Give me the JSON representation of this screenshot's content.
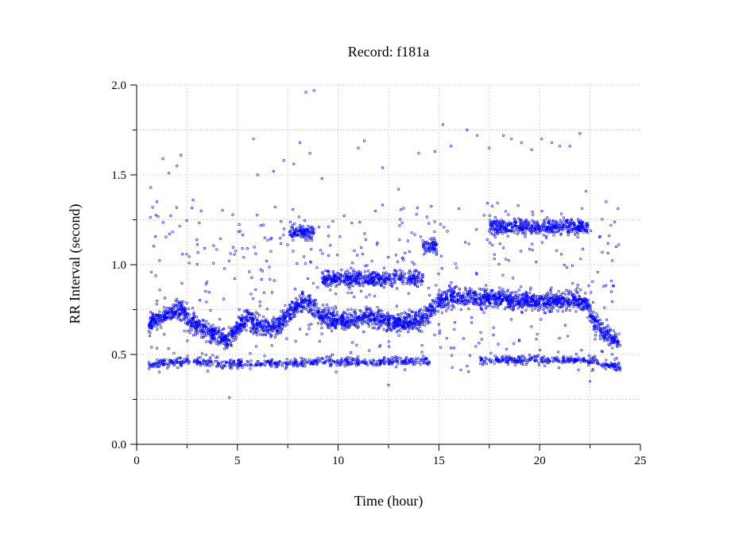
{
  "chart_data": {
    "type": "scatter",
    "title": "Record:  f181a",
    "xlabel": "Time (hour)",
    "ylabel": "RR Interval (second)",
    "xlim": [
      0,
      25
    ],
    "ylim": [
      0,
      2.0
    ],
    "x_ticks": [
      0,
      5,
      10,
      15,
      20,
      25
    ],
    "x_tick_labels": [
      "0",
      "5",
      "10",
      "15",
      "20",
      "25"
    ],
    "y_ticks": [
      0,
      0.5,
      1.0,
      1.5,
      2.0
    ],
    "y_tick_labels": [
      "0.0",
      "0.5",
      "1.0",
      "1.5",
      "2.0"
    ],
    "grid": true,
    "legend": "none",
    "marker_color": "#0000ff",
    "series": [
      {
        "name": "",
        "main_band": [
          [
            0.6,
            0.67
          ],
          [
            1.0,
            0.7
          ],
          [
            1.5,
            0.72
          ],
          [
            2.0,
            0.74
          ],
          [
            2.3,
            0.75
          ],
          [
            2.6,
            0.68
          ],
          [
            3.0,
            0.67
          ],
          [
            3.5,
            0.62
          ],
          [
            4.0,
            0.6
          ],
          [
            4.5,
            0.58
          ],
          [
            5.0,
            0.65
          ],
          [
            5.5,
            0.7
          ],
          [
            6.0,
            0.66
          ],
          [
            6.5,
            0.65
          ],
          [
            7.0,
            0.66
          ],
          [
            7.5,
            0.72
          ],
          [
            8.0,
            0.78
          ],
          [
            8.5,
            0.8
          ],
          [
            9.0,
            0.72
          ],
          [
            9.5,
            0.7
          ],
          [
            10.0,
            0.69
          ],
          [
            10.5,
            0.69
          ],
          [
            11.0,
            0.7
          ],
          [
            11.5,
            0.71
          ],
          [
            12.0,
            0.7
          ],
          [
            12.5,
            0.68
          ],
          [
            13.0,
            0.67
          ],
          [
            13.5,
            0.68
          ],
          [
            14.0,
            0.7
          ],
          [
            14.5,
            0.73
          ],
          [
            15.0,
            0.8
          ],
          [
            15.5,
            0.82
          ],
          [
            16.0,
            0.82
          ],
          [
            16.5,
            0.82
          ],
          [
            17.0,
            0.8
          ],
          [
            17.5,
            0.82
          ],
          [
            18.0,
            0.81
          ],
          [
            18.5,
            0.8
          ],
          [
            19.0,
            0.79
          ],
          [
            19.5,
            0.8
          ],
          [
            20.0,
            0.79
          ],
          [
            20.5,
            0.8
          ],
          [
            21.0,
            0.8
          ],
          [
            21.5,
            0.8
          ],
          [
            22.0,
            0.8
          ],
          [
            22.3,
            0.8
          ],
          [
            22.6,
            0.7
          ],
          [
            23.0,
            0.65
          ],
          [
            23.5,
            0.6
          ],
          [
            24.0,
            0.57
          ]
        ],
        "lower_band": [
          [
            0.6,
            0.44
          ],
          [
            1.0,
            0.45
          ],
          [
            2.0,
            0.46
          ],
          [
            3.0,
            0.46
          ],
          [
            4.0,
            0.45
          ],
          [
            5.0,
            0.45
          ],
          [
            6.0,
            0.45
          ],
          [
            7.0,
            0.45
          ],
          [
            8.0,
            0.45
          ],
          [
            9.0,
            0.46
          ],
          [
            10.0,
            0.46
          ],
          [
            11.0,
            0.46
          ],
          [
            12.0,
            0.46
          ],
          [
            13.0,
            0.46
          ],
          [
            14.0,
            0.46
          ],
          [
            14.6,
            0.46
          ],
          [
            17.0,
            0.47
          ],
          [
            18.0,
            0.47
          ],
          [
            19.0,
            0.47
          ],
          [
            20.0,
            0.47
          ],
          [
            21.0,
            0.47
          ],
          [
            22.0,
            0.47
          ],
          [
            23.0,
            0.45
          ],
          [
            24.0,
            0.43
          ]
        ],
        "upper_clusters": [
          {
            "x_range": [
              7.6,
              8.8
            ],
            "y_center": 1.18
          },
          {
            "x_range": [
              17.5,
              22.4
            ],
            "y_center": 1.21
          },
          {
            "x_range": [
              14.2,
              14.9
            ],
            "y_center": 1.1
          },
          {
            "x_range": [
              9.2,
              14.2
            ],
            "y_center": 0.92
          }
        ],
        "outliers": [
          [
            0.7,
            1.43
          ],
          [
            1.0,
            1.35
          ],
          [
            1.3,
            1.59
          ],
          [
            1.6,
            1.51
          ],
          [
            2.0,
            1.55
          ],
          [
            2.2,
            1.61
          ],
          [
            2.8,
            1.36
          ],
          [
            3.2,
            1.3
          ],
          [
            5.8,
            1.7
          ],
          [
            6.0,
            1.5
          ],
          [
            6.8,
            1.52
          ],
          [
            7.3,
            1.58
          ],
          [
            7.8,
            1.56
          ],
          [
            8.1,
            1.68
          ],
          [
            8.4,
            1.96
          ],
          [
            8.8,
            1.97
          ],
          [
            8.6,
            1.62
          ],
          [
            9.2,
            1.48
          ],
          [
            11.0,
            1.65
          ],
          [
            11.3,
            1.69
          ],
          [
            12.2,
            1.54
          ],
          [
            13.0,
            1.42
          ],
          [
            14.0,
            1.62
          ],
          [
            14.8,
            1.63
          ],
          [
            15.2,
            1.78
          ],
          [
            15.6,
            1.66
          ],
          [
            16.4,
            1.75
          ],
          [
            16.9,
            1.72
          ],
          [
            17.5,
            1.65
          ],
          [
            18.2,
            1.72
          ],
          [
            18.6,
            1.7
          ],
          [
            19.1,
            1.68
          ],
          [
            19.6,
            1.64
          ],
          [
            20.1,
            1.7
          ],
          [
            20.6,
            1.68
          ],
          [
            21.0,
            1.66
          ],
          [
            21.5,
            1.66
          ],
          [
            22.0,
            1.73
          ],
          [
            22.3,
            1.41
          ],
          [
            23.3,
            1.35
          ],
          [
            23.8,
            1.1
          ],
          [
            4.6,
            0.26
          ],
          [
            12.5,
            0.33
          ],
          [
            22.5,
            0.35
          ]
        ]
      }
    ]
  }
}
